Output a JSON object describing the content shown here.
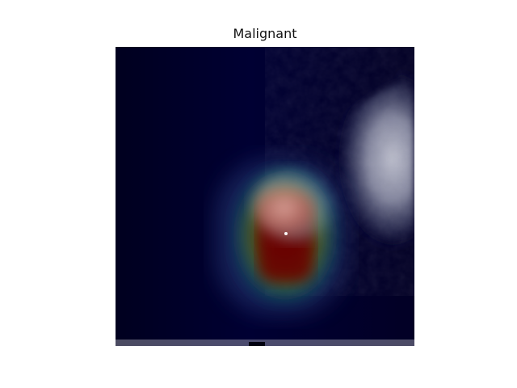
{
  "figure": {
    "title": "Malignant"
  },
  "image": {
    "description_icon": "mammogram-heatmap-overlay-image",
    "colors": {
      "background_tint": "#000030",
      "hot": "#7a0000",
      "warm": "#d89a90",
      "mid": "#6a8f6a",
      "cool": "#7aa8c8",
      "tissue": "#b9bccb"
    }
  }
}
